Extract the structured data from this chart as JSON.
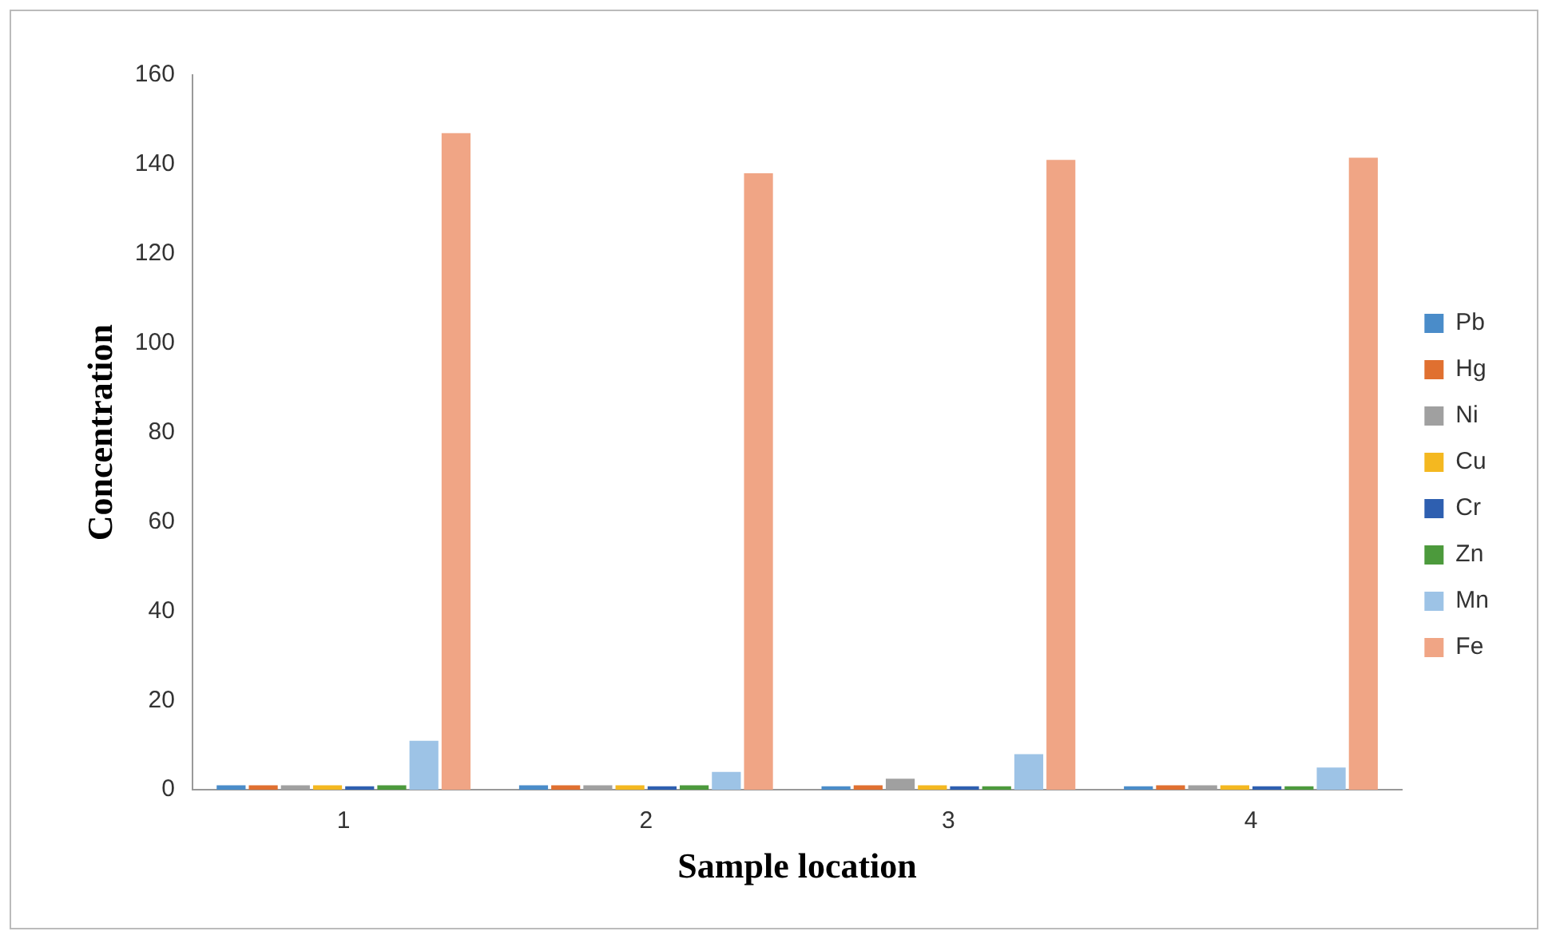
{
  "chart_data": {
    "type": "bar",
    "xlabel": "Sample location",
    "ylabel": "Concentration",
    "categories": [
      "1",
      "2",
      "3",
      "4"
    ],
    "series": [
      {
        "name": "Pb",
        "color": "#4a8cc9",
        "values": [
          1,
          1,
          0.8,
          0.8
        ]
      },
      {
        "name": "Hg",
        "color": "#e07030",
        "values": [
          1,
          1,
          1,
          1
        ]
      },
      {
        "name": "Ni",
        "color": "#a0a0a0",
        "values": [
          1,
          1,
          2.5,
          1
        ]
      },
      {
        "name": "Cu",
        "color": "#f4b820",
        "values": [
          1,
          1,
          1,
          1
        ]
      },
      {
        "name": "Cr",
        "color": "#2e5fb0",
        "values": [
          0.8,
          0.8,
          0.8,
          0.8
        ]
      },
      {
        "name": "Zn",
        "color": "#4c9a3c",
        "values": [
          1,
          1,
          0.8,
          0.8
        ]
      },
      {
        "name": "Mn",
        "color": "#9dc3e6",
        "values": [
          11,
          4,
          8,
          5
        ]
      },
      {
        "name": "Fe",
        "color": "#f0a585",
        "values": [
          147,
          138,
          141,
          141.5
        ]
      }
    ],
    "ylim": [
      0,
      160
    ],
    "yticks": [
      0,
      20,
      40,
      60,
      80,
      100,
      120,
      140,
      160
    ],
    "grid": false,
    "legend": "right"
  }
}
